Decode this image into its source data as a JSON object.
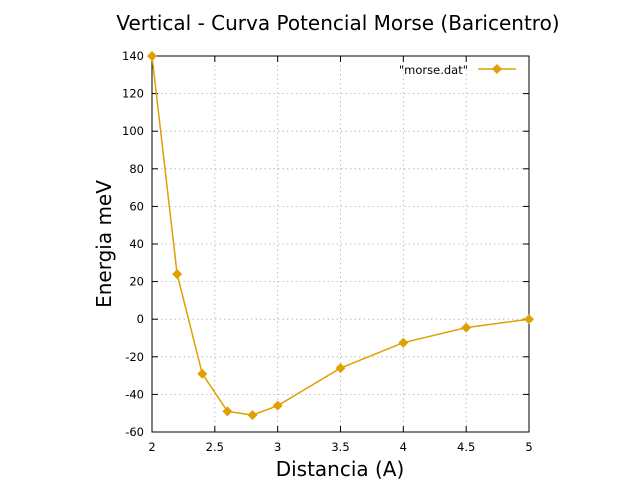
{
  "chart_data": {
    "type": "line",
    "title": "Vertical - Curva Potencial Morse (Baricentro)",
    "xlabel": "Distancia (A)",
    "ylabel": "Energia meV",
    "xlim": [
      2,
      5
    ],
    "ylim": [
      -60,
      140
    ],
    "x_ticks": [
      "2",
      "2.5",
      "3",
      "3.5",
      "4",
      "4.5",
      "5"
    ],
    "y_ticks": [
      "-60",
      "-40",
      "-20",
      "0",
      "20",
      "40",
      "60",
      "80",
      "100",
      "120",
      "140"
    ],
    "grid": true,
    "legend_position": "top-right",
    "series": [
      {
        "name": "\"morse.dat\"",
        "color": "#e0a000",
        "marker": "diamond",
        "x": [
          2.0,
          2.2,
          2.4,
          2.6,
          2.8,
          3.0,
          3.5,
          4.0,
          4.5,
          5.0
        ],
        "y": [
          140,
          24,
          -29,
          -49,
          -51,
          -46,
          -26,
          -12.5,
          -4.5,
          0
        ]
      }
    ]
  }
}
